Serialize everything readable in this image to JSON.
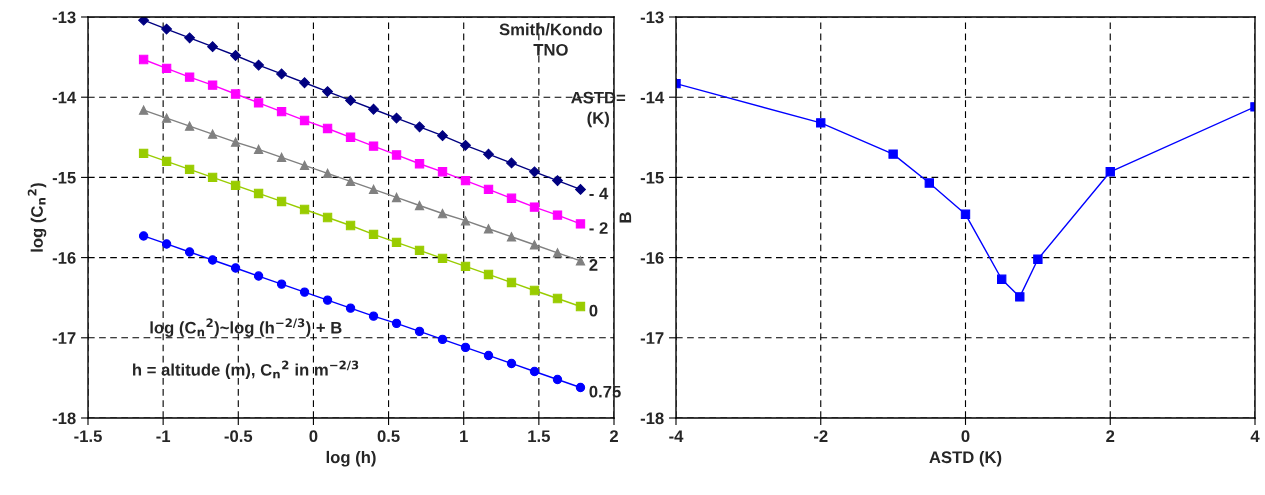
{
  "chart_data": [
    {
      "type": "line",
      "xlabel": "log (h)",
      "ylabel": "log (C$_{n}$$^{2}$)",
      "x": [
        -1.13,
        -0.977,
        -0.824,
        -0.671,
        -0.518,
        -0.365,
        -0.212,
        -0.059,
        0.094,
        0.247,
        0.4,
        0.553,
        0.706,
        0.859,
        1.012,
        1.165,
        1.318,
        1.471,
        1.624,
        1.777
      ],
      "series": [
        {
          "name": "- 4",
          "color": "#000080",
          "marker": "diamond",
          "values": [
            -13.04,
            -13.15,
            -13.26,
            -13.37,
            -13.48,
            -13.6,
            -13.71,
            -13.82,
            -13.93,
            -14.04,
            -14.15,
            -14.26,
            -14.37,
            -14.48,
            -14.6,
            -14.71,
            -14.82,
            -14.93,
            -15.04,
            -15.15
          ]
        },
        {
          "name": "- 2",
          "color": "#ff00ff",
          "marker": "square",
          "values": [
            -13.53,
            -13.64,
            -13.75,
            -13.85,
            -13.96,
            -14.07,
            -14.18,
            -14.29,
            -14.39,
            -14.5,
            -14.61,
            -14.72,
            -14.83,
            -14.93,
            -15.04,
            -15.15,
            -15.26,
            -15.37,
            -15.47,
            -15.58
          ]
        },
        {
          "name": "2",
          "color": "#808080",
          "marker": "triangle",
          "values": [
            -14.16,
            -14.26,
            -14.36,
            -14.46,
            -14.56,
            -14.65,
            -14.75,
            -14.85,
            -14.95,
            -15.05,
            -15.15,
            -15.25,
            -15.35,
            -15.45,
            -15.54,
            -15.64,
            -15.74,
            -15.84,
            -15.94,
            -16.04
          ]
        },
        {
          "name": "0",
          "color": "#99cc00",
          "marker": "square",
          "values": [
            -14.7,
            -14.8,
            -14.9,
            -15.0,
            -15.1,
            -15.2,
            -15.3,
            -15.4,
            -15.5,
            -15.6,
            -15.71,
            -15.81,
            -15.91,
            -16.01,
            -16.11,
            -16.21,
            -16.31,
            -16.41,
            -16.51,
            -16.61
          ]
        },
        {
          "name": "0.75",
          "color": "#0000ff",
          "marker": "circle",
          "values": [
            -15.73,
            -15.83,
            -15.93,
            -16.03,
            -16.13,
            -16.23,
            -16.33,
            -16.43,
            -16.53,
            -16.63,
            -16.73,
            -16.82,
            -16.92,
            -17.02,
            -17.12,
            -17.22,
            -17.32,
            -17.42,
            -17.52,
            -17.62
          ]
        }
      ],
      "xlim": [
        -1.5,
        2
      ],
      "xticks": [
        -1.5,
        -1,
        -0.5,
        0,
        0.5,
        1,
        1.5,
        2
      ],
      "ylim": [
        -18,
        -13
      ],
      "yticks": [
        -18,
        -17,
        -16,
        -15,
        -14,
        -13
      ],
      "grid": true,
      "line_style": "solid",
      "annotations": [
        "Smith/Kondo\nTNO",
        "ASTD=\n(K)",
        "log (C$_{n}$$^{2}$)~log (h$^{−2/3}$) + B",
        "h = altitude (m), C$_{n}$$^{2}$ in m$^{−2/3}$"
      ]
    },
    {
      "type": "line",
      "xlabel": "ASTD (K)",
      "ylabel": "B",
      "x": [
        -4,
        -2,
        -1,
        -0.5,
        0,
        0.5,
        0.75,
        1,
        2,
        4
      ],
      "series": [
        {
          "color": "#0000ff",
          "marker": "square",
          "values": [
            -13.83,
            -14.32,
            -14.71,
            -15.07,
            -15.46,
            -16.27,
            -16.49,
            -16.02,
            -14.93,
            -14.12
          ]
        }
      ],
      "xlim": [
        -4,
        4
      ],
      "xticks": [
        -4,
        -2,
        0,
        2,
        4
      ],
      "ylim": [
        -18,
        -13
      ],
      "yticks": [
        -18,
        -17,
        -16,
        -15,
        -14,
        -13
      ],
      "grid": true,
      "line_style": "solid"
    }
  ]
}
